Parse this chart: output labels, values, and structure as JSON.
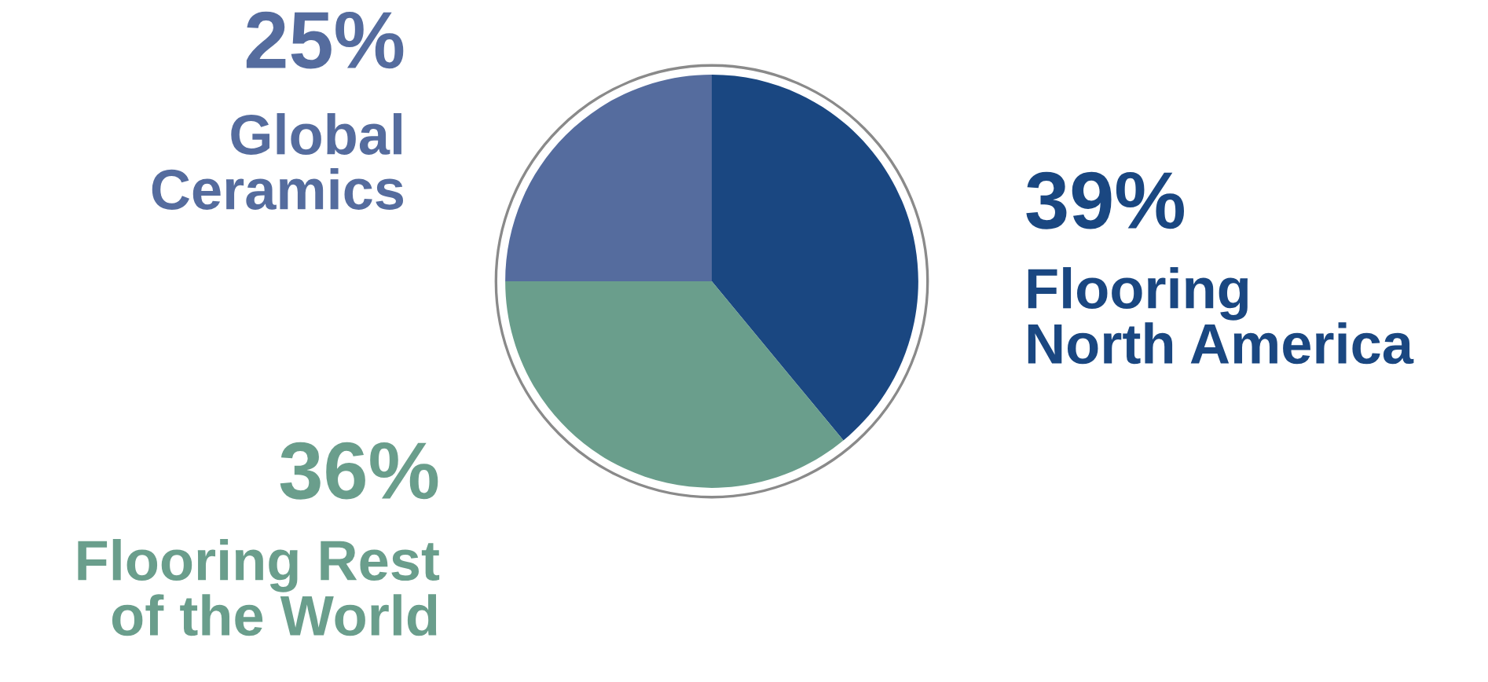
{
  "chart_data": {
    "type": "pie",
    "categories": [
      "Flooring\nNorth America",
      "Flooring Rest\nof the World",
      "Global\nCeramics"
    ],
    "values": [
      39,
      36,
      25
    ],
    "colors": [
      "#1a4781",
      "#6a9e8c",
      "#556c9e"
    ],
    "value_labels": [
      "39%",
      "36%",
      "25%"
    ],
    "legend": false
  }
}
